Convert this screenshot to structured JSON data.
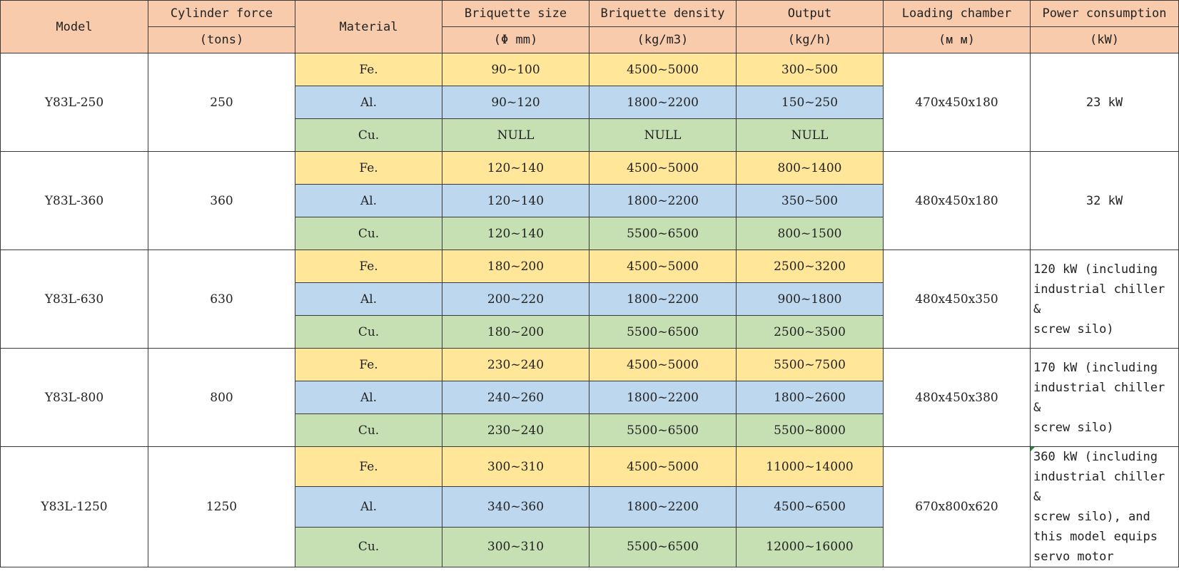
{
  "headers": {
    "model": "Model",
    "cylinder_force": "Cylinder force",
    "cylinder_force_unit": "(tons)",
    "material": "Material",
    "briquette_size": "Briquette size",
    "briquette_size_unit": "(Φ  mm)",
    "briquette_density": "Briquette density",
    "briquette_density_unit": "(kg/m3)",
    "output": "Output",
    "output_unit": "(kg/h)",
    "loading_chamber": "Loading chamber",
    "loading_chamber_unit": "(ᴍ ᴍ)",
    "power_consumption": "Power consumption",
    "power_consumption_unit": "(kW)"
  },
  "colors": {
    "header": "#f8cbad",
    "fe": "#ffe699",
    "al": "#bdd7ee",
    "cu": "#c6e0b4"
  },
  "models": [
    {
      "model": "Y83L-250",
      "force": "250",
      "chamber": "470x450x180",
      "power": "23  kW",
      "rows": [
        {
          "material": "Fe.",
          "size": "90~100",
          "density": "4500~5000",
          "output": "300~500"
        },
        {
          "material": "Al.",
          "size": "90~120",
          "density": "1800~2200",
          "output": "150~250"
        },
        {
          "material": "Cu.",
          "size": "NULL",
          "density": "NULL",
          "output": "NULL"
        }
      ]
    },
    {
      "model": "Y83L-360",
      "force": "360",
      "chamber": "480x450x180",
      "power": "32  kW",
      "rows": [
        {
          "material": "Fe.",
          "size": "120~140",
          "density": "4500~5000",
          "output": "800~1400"
        },
        {
          "material": "Al.",
          "size": "120~140",
          "density": "1800~2200",
          "output": "350~500"
        },
        {
          "material": "Cu.",
          "size": "120~140",
          "density": "5500~6500",
          "output": "800~1500"
        }
      ]
    },
    {
      "model": "Y83L-630",
      "force": "630",
      "chamber": "480x450x350",
      "power_lines": [
        "120 kW (including",
        "industrial chiller &",
        "screw silo)"
      ],
      "rows": [
        {
          "material": "Fe.",
          "size": "180~200",
          "density": "4500~5000",
          "output": "2500~3200"
        },
        {
          "material": "Al.",
          "size": "200~220",
          "density": "1800~2200",
          "output": "900~1800"
        },
        {
          "material": "Cu.",
          "size": "180~200",
          "density": "5500~6500",
          "output": "2500~3500"
        }
      ]
    },
    {
      "model": "Y83L-800",
      "force": "800",
      "chamber": "480x450x380",
      "power_lines": [
        "170 kW (including",
        "industrial chiller &",
        "screw silo)"
      ],
      "rows": [
        {
          "material": "Fe.",
          "size": "230~240",
          "density": "4500~5000",
          "output": "5500~7500"
        },
        {
          "material": "Al.",
          "size": "240~260",
          "density": "1800~2200",
          "output": "1800~2600"
        },
        {
          "material": "Cu.",
          "size": "230~240",
          "density": "5500~6500",
          "output": "5500~8000"
        }
      ]
    },
    {
      "model": "Y83L-1250",
      "force": "1250",
      "chamber": "670x800x620",
      "power_lines": [
        "360 kW (including",
        "industrial chiller &",
        "screw silo), and",
        "this model equips",
        "servo motor"
      ],
      "rows": [
        {
          "material": "Fe.",
          "size": "300~310",
          "density": "4500~5000",
          "output": "11000~14000"
        },
        {
          "material": "Al.",
          "size": "340~360",
          "density": "1800~2200",
          "output": "4500~6500"
        },
        {
          "material": "Cu.",
          "size": "300~310",
          "density": "5500~6500",
          "output": "12000~16000"
        }
      ]
    }
  ]
}
